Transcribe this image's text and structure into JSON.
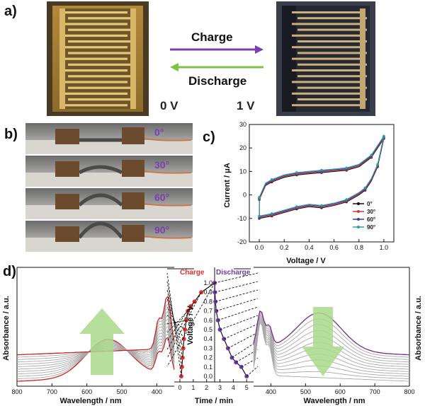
{
  "panel_labels": {
    "a": "a)",
    "b": "b)",
    "c": "c)",
    "d": "d)"
  },
  "panel_a": {
    "charge_label": "Charge",
    "discharge_label": "Discharge",
    "left_voltage": "0 V",
    "right_voltage": "1 V",
    "colors": {
      "charge_arrow": "#7b3fb0",
      "discharge_arrow": "#7dc242",
      "electrode_bleached": "#c9a14a",
      "electrode_colored": "#2a2d38"
    }
  },
  "panel_b": {
    "angles": [
      "0°",
      "30°",
      "60°",
      "90°"
    ],
    "angle_color": "#7b3fb0"
  },
  "chart_data": [
    {
      "type": "line",
      "panel": "c",
      "xlabel": "Voltage / V",
      "ylabel": "Current / μA",
      "xlim": [
        0,
        1.05
      ],
      "ylim": [
        -20,
        30
      ],
      "x_ticks": [
        "0.0",
        "0.2",
        "0.4",
        "0.6",
        "0.8",
        "1.0"
      ],
      "y_ticks": [
        "-20",
        "-10",
        "0",
        "10",
        "20",
        "30"
      ],
      "legend_position": "bottom-right",
      "series": [
        {
          "name": "0°",
          "color": "#111111",
          "marker": "square"
        },
        {
          "name": "30°",
          "color": "#e03030",
          "marker": "circle"
        },
        {
          "name": "60°",
          "color": "#3a3aa8",
          "marker": "triangle"
        },
        {
          "name": "90°",
          "color": "#2aa0a0",
          "marker": "star"
        }
      ],
      "upper_branch": {
        "x": [
          0.0,
          0.05,
          0.1,
          0.2,
          0.3,
          0.4,
          0.5,
          0.6,
          0.7,
          0.8,
          0.9,
          0.95,
          1.0
        ],
        "y": [
          -2,
          4,
          5.5,
          7.5,
          8.5,
          9,
          9.5,
          10,
          10.5,
          12,
          16,
          20,
          24
        ]
      },
      "lower_branch": {
        "x": [
          1.0,
          0.95,
          0.9,
          0.85,
          0.8,
          0.7,
          0.6,
          0.5,
          0.4,
          0.3,
          0.2,
          0.1,
          0.05,
          0.0
        ],
        "y": [
          24,
          12,
          6,
          2,
          0,
          -3,
          -4.5,
          -5.5,
          -5,
          -6,
          -7.5,
          -9,
          -9.5,
          -10
        ]
      }
    },
    {
      "type": "line",
      "panel": "d-left",
      "xlabel": "Wavelength / nm",
      "ylabel": "Absorbance / a.u.",
      "xlim": [
        800,
        350
      ],
      "x_ticks": [
        "800",
        "700",
        "600",
        "500",
        "400"
      ],
      "curve_count": 12,
      "first_color": "#cc2020",
      "other_color": "#a8a8a8"
    },
    {
      "type": "line",
      "panel": "d-center",
      "title_left": "Charge",
      "title_right": "Discharge",
      "xlabel": "Time / min",
      "ylabel": "Voltage / V",
      "ylim": [
        0,
        1.0
      ],
      "x_ticks": [
        "0",
        "1",
        "2",
        "3",
        "4",
        "5"
      ],
      "y_ticks": [
        "0.0",
        "0.1",
        "0.2",
        "0.3",
        "0.4",
        "0.5",
        "0.6",
        "0.7",
        "0.8",
        "0.9",
        "1.0"
      ],
      "charge": {
        "x": [
          0.1,
          0.15,
          0.2,
          0.25,
          0.3,
          0.38,
          0.48,
          0.6,
          0.8,
          1.1,
          1.6,
          2.6
        ],
        "y": [
          0.0,
          0.1,
          0.2,
          0.3,
          0.4,
          0.5,
          0.6,
          0.7,
          0.75,
          0.8,
          0.9,
          1.0
        ]
      },
      "discharge": {
        "x": [
          2.6,
          2.62,
          2.66,
          2.72,
          2.85,
          3.0,
          3.3,
          3.6,
          3.9,
          4.2,
          4.6,
          5.0
        ],
        "y": [
          1.0,
          0.9,
          0.8,
          0.7,
          0.6,
          0.5,
          0.4,
          0.3,
          0.2,
          0.15,
          0.1,
          0.0
        ]
      },
      "colors": {
        "charge": "#e03030",
        "discharge": "#6a3aa8"
      }
    },
    {
      "type": "line",
      "panel": "d-right",
      "xlabel": "Wavelength / nm",
      "ylabel": "Absorbance / a.u.",
      "xlim": [
        350,
        800
      ],
      "x_ticks": [
        "400",
        "500",
        "600",
        "700",
        "800"
      ],
      "curve_count": 12,
      "last_color": "#7a2a8a",
      "other_color": "#a8a8a8"
    }
  ]
}
